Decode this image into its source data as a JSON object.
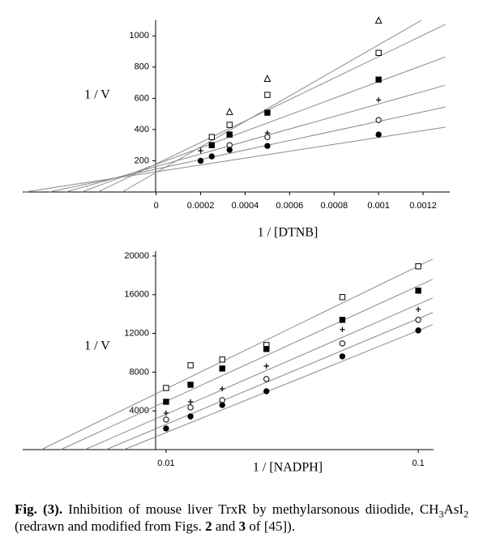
{
  "chart_data": [
    {
      "type": "scatter",
      "y_label": "1 / V",
      "x_label": "1 / [DTNB]",
      "xlim": [
        -0.0006,
        0.00132
      ],
      "ylim": [
        0,
        1100
      ],
      "xticks": [
        0,
        0.0002,
        0.0004,
        0.0006,
        0.0008,
        0.001,
        0.0012
      ],
      "yticks": [
        200,
        400,
        600,
        800,
        1000
      ],
      "x": [
        0.0002,
        0.00025,
        0.00033,
        0.0005,
        0.001
      ],
      "line_color": "#8a8a8a",
      "series": [
        {
          "marker": "triangle-open",
          "color": "#000000",
          "values": [
            null,
            null,
            513,
            725,
            1098
          ],
          "line_x": [
            -0.000153,
            0.001193
          ],
          "line_y": [
            0,
            1100
          ]
        },
        {
          "marker": "square-open",
          "color": "#000000",
          "values": [
            null,
            352,
            430,
            622,
            891
          ],
          "line_x": [
            -0.000262,
            0.0013
          ],
          "line_y": [
            0,
            1073
          ]
        },
        {
          "marker": "square",
          "color": "#000000",
          "values": [
            null,
            300,
            368,
            508,
            720
          ],
          "line_x": [
            -0.000335,
            0.0013
          ],
          "line_y": [
            0,
            865
          ]
        },
        {
          "marker": "plus",
          "color": "#000000",
          "values": [
            264,
            null,
            null,
            378,
            590
          ],
          "line_x": [
            -0.000407,
            0.0013
          ],
          "line_y": [
            0,
            684
          ]
        },
        {
          "marker": "circle-open",
          "color": "#000000",
          "values": [
            null,
            null,
            300,
            352,
            461
          ],
          "line_x": [
            -0.00048,
            0.0013
          ],
          "line_y": [
            0,
            544
          ]
        },
        {
          "marker": "circle",
          "color": "#000000",
          "values": [
            200,
            228,
            270,
            295,
            368
          ],
          "line_x": [
            -0.000589,
            0.0013
          ],
          "line_y": [
            0,
            415
          ]
        }
      ]
    },
    {
      "type": "scatter",
      "y_label": "1 / V",
      "x_label": "1 / [NADPH]",
      "x_scale": "log",
      "xlim": [
        0.0027,
        0.115
      ],
      "ylim": [
        0,
        20500
      ],
      "xticks": [
        0.01,
        0.1
      ],
      "yticks": [
        4000,
        8000,
        12000,
        16000,
        20000
      ],
      "x": [
        0.01,
        0.0125,
        0.0167,
        0.025,
        0.05,
        0.1
      ],
      "line_color": "#8a8a8a",
      "series": [
        {
          "marker": "square-open",
          "color": "#000000",
          "values": [
            6365,
            8710,
            9300,
            10800,
            15750,
            18930
          ],
          "line_x": [
            0.0032,
            0.114
          ],
          "line_y": [
            0,
            19680
          ]
        },
        {
          "marker": "square",
          "color": "#000000",
          "values": [
            4940,
            6700,
            8375,
            10390,
            13400,
            16420
          ],
          "line_x": [
            0.00382,
            0.114
          ],
          "line_y": [
            0,
            17590
          ]
        },
        {
          "marker": "plus",
          "color": "#000000",
          "values": [
            3770,
            4940,
            6280,
            8630,
            12400,
            14490
          ],
          "line_x": [
            0.00477,
            0.114
          ],
          "line_y": [
            0,
            15660
          ]
        },
        {
          "marker": "circle-open",
          "color": "#000000",
          "values": [
            3100,
            4355,
            5110,
            7290,
            10970,
            13400
          ],
          "line_x": [
            0.00578,
            0.114
          ],
          "line_y": [
            0,
            14150
          ]
        },
        {
          "marker": "circle",
          "color": "#000000",
          "values": [
            2180,
            3430,
            4600,
            6030,
            9630,
            12310
          ],
          "line_x": [
            0.00681,
            0.114
          ],
          "line_y": [
            0,
            12900
          ]
        }
      ]
    }
  ],
  "caption": [
    {
      "text": "Fig. (3).",
      "bold": true
    },
    {
      "text": " Inhibition of mouse liver TrxR by methylarsonous diiodide, CH"
    },
    {
      "text": "3",
      "sub": true
    },
    {
      "text": "AsI"
    },
    {
      "text": "2",
      "sub": true
    },
    {
      "text": " (redrawn and modified from Figs. "
    },
    {
      "text": "2",
      "bold": true
    },
    {
      "text": " and "
    },
    {
      "text": "3",
      "bold": true
    },
    {
      "text": " of [45])."
    }
  ]
}
